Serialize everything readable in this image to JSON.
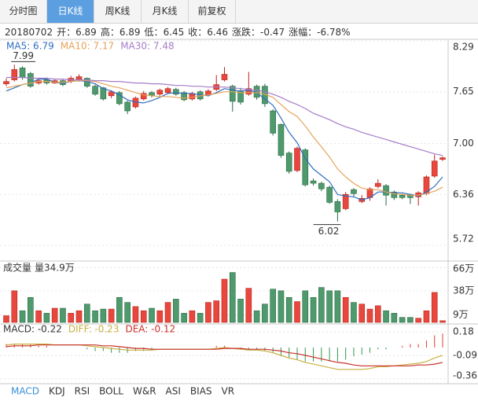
{
  "tabs": [
    "分时图",
    "日K线",
    "周K线",
    "月K线",
    "前复权"
  ],
  "active_tab": 1,
  "info": {
    "date": "20180702",
    "items": [
      {
        "label": "开：",
        "value": "6.89"
      },
      {
        "label": "高：",
        "value": "6.89"
      },
      {
        "label": "低：",
        "value": "6.45"
      },
      {
        "label": "收：",
        "value": "6.46"
      },
      {
        "label": "涨跌：",
        "value": "-0.47"
      },
      {
        "label": "涨幅：",
        "value": "-6.78%"
      }
    ]
  },
  "chart_data": [
    {
      "type": "candlestick",
      "up_color": "#e8473d",
      "up_edge": "#b8231c",
      "down_color": "#4e9a6c",
      "down_edge": "#2b6a44",
      "open": [
        7.75,
        7.8,
        7.95,
        7.88,
        7.76,
        7.8,
        7.76,
        7.79,
        7.78,
        7.8,
        7.82,
        7.72,
        7.7,
        7.6,
        7.64,
        7.52,
        7.46,
        7.56,
        7.64,
        7.62,
        7.64,
        7.68,
        7.64,
        7.56,
        7.65,
        7.61,
        7.68,
        7.8,
        7.72,
        7.66,
        7.62,
        7.72,
        7.72,
        7.41,
        7.24,
        6.88,
        6.66,
        6.92,
        6.53,
        6.5,
        6.45,
        6.27,
        6.18,
        6.42,
        6.27,
        6.32,
        6.46,
        6.47,
        6.39,
        6.35,
        6.36,
        6.33,
        6.37,
        6.59,
        6.8
      ],
      "close": [
        7.78,
        7.93,
        7.83,
        7.72,
        7.79,
        7.76,
        7.79,
        7.74,
        7.82,
        7.84,
        7.72,
        7.62,
        7.56,
        7.65,
        7.5,
        7.41,
        7.57,
        7.63,
        7.6,
        7.67,
        7.69,
        7.62,
        7.55,
        7.63,
        7.56,
        7.66,
        7.74,
        7.87,
        7.53,
        7.52,
        7.69,
        7.58,
        7.5,
        7.13,
        6.85,
        6.65,
        6.94,
        6.48,
        6.5,
        6.43,
        6.26,
        6.14,
        6.36,
        6.37,
        6.31,
        6.43,
        6.5,
        6.35,
        6.32,
        6.32,
        6.32,
        6.38,
        6.58,
        6.78,
        6.82
      ],
      "high": [
        7.82,
        7.99,
        7.97,
        7.9,
        7.82,
        7.83,
        7.81,
        7.81,
        7.85,
        7.87,
        7.83,
        7.74,
        7.71,
        7.67,
        7.66,
        7.54,
        7.59,
        7.66,
        7.66,
        7.69,
        7.71,
        7.7,
        7.66,
        7.65,
        7.67,
        7.68,
        7.86,
        7.96,
        7.74,
        7.7,
        7.9,
        7.74,
        7.75,
        7.43,
        7.25,
        6.9,
        6.96,
        6.94,
        6.56,
        6.52,
        6.47,
        6.3,
        6.39,
        6.44,
        6.35,
        6.45,
        6.55,
        6.49,
        6.41,
        6.37,
        6.37,
        6.4,
        6.6,
        6.86,
        6.84
      ],
      "low": [
        7.72,
        7.78,
        7.8,
        7.7,
        7.74,
        7.74,
        7.75,
        7.72,
        7.76,
        7.78,
        7.7,
        7.6,
        7.54,
        7.57,
        7.48,
        7.37,
        7.44,
        7.54,
        7.58,
        7.6,
        7.62,
        7.6,
        7.53,
        7.54,
        7.54,
        7.59,
        7.66,
        7.78,
        7.4,
        7.49,
        7.6,
        7.55,
        7.46,
        7.1,
        6.82,
        6.62,
        6.64,
        6.46,
        6.47,
        6.4,
        6.24,
        6.02,
        6.16,
        6.33,
        6.25,
        6.28,
        6.44,
        6.22,
        6.29,
        6.3,
        6.24,
        6.22,
        6.35,
        6.57,
        6.78
      ],
      "series": [
        {
          "name": "MA5: 6.79",
          "color": "#2f6fc0",
          "values": [
            7.66,
            7.7,
            7.74,
            7.76,
            7.81,
            7.81,
            7.77,
            7.76,
            7.78,
            7.79,
            7.78,
            7.75,
            7.69,
            7.66,
            7.61,
            7.55,
            7.52,
            7.51,
            7.54,
            7.58,
            7.63,
            7.64,
            7.63,
            7.63,
            7.61,
            7.6,
            7.64,
            7.69,
            7.67,
            7.66,
            7.67,
            7.64,
            7.56,
            7.48,
            7.32,
            7.14,
            7.01,
            6.81,
            6.68,
            6.6,
            6.52,
            6.36,
            6.34,
            6.33,
            6.29,
            6.32,
            6.39,
            6.39,
            6.38,
            6.38,
            6.36,
            6.34,
            6.39,
            6.46,
            6.58
          ]
        },
        {
          "name": "MA10: 7.17",
          "color": "#e6a35a",
          "values": [
            7.7,
            7.72,
            7.74,
            7.76,
            7.78,
            7.78,
            7.77,
            7.77,
            7.78,
            7.79,
            7.79,
            7.78,
            7.75,
            7.72,
            7.7,
            7.67,
            7.64,
            7.61,
            7.6,
            7.59,
            7.59,
            7.58,
            7.57,
            7.58,
            7.6,
            7.61,
            7.63,
            7.65,
            7.65,
            7.64,
            7.64,
            7.64,
            7.62,
            7.58,
            7.49,
            7.4,
            7.34,
            7.22,
            7.08,
            6.96,
            6.83,
            6.68,
            6.58,
            6.5,
            6.44,
            6.42,
            6.42,
            6.39,
            6.37,
            6.36,
            6.35,
            6.35,
            6.37,
            6.4,
            6.45
          ]
        },
        {
          "name": "MA30: 7.48",
          "color": "#a57cc8",
          "values": [
            7.83,
            7.83,
            7.83,
            7.82,
            7.82,
            7.82,
            7.81,
            7.81,
            7.8,
            7.8,
            7.8,
            7.79,
            7.79,
            7.78,
            7.78,
            7.77,
            7.76,
            7.76,
            7.75,
            7.75,
            7.74,
            7.73,
            7.73,
            7.72,
            7.72,
            7.71,
            7.71,
            7.71,
            7.7,
            7.69,
            7.68,
            7.67,
            7.65,
            7.62,
            7.58,
            7.53,
            7.49,
            7.44,
            7.38,
            7.34,
            7.3,
            7.25,
            7.21,
            7.18,
            7.14,
            7.11,
            7.08,
            7.05,
            7.02,
            6.99,
            6.96,
            6.93,
            6.9,
            6.87,
            6.85
          ]
        }
      ],
      "annotations": [
        {
          "value": 7.99,
          "label": "7.99"
        },
        {
          "value": 6.02,
          "label": "6.02"
        }
      ],
      "ylim": [
        5.72,
        8.29
      ],
      "yticks": [
        8.29,
        7.65,
        {
          "value": 7,
          "label": "7.00"
        },
        6.36,
        5.72
      ],
      "grid": true
    },
    {
      "type": "bar",
      "title": "成交量",
      "subtitle": "量34.9万",
      "values": [
        8,
        38,
        14,
        30,
        14,
        11,
        17,
        17,
        11,
        14,
        22,
        14,
        16,
        16,
        30,
        24,
        19,
        14,
        17,
        14,
        24,
        28,
        11,
        14,
        11,
        24,
        26,
        52,
        60,
        28,
        41,
        14,
        22,
        40,
        38,
        30,
        25,
        38,
        30,
        42,
        38,
        38,
        30,
        24,
        22,
        16,
        20,
        14,
        11,
        6,
        6,
        5,
        14,
        36,
        2
      ],
      "ylim": [
        0,
        70
      ],
      "yticks": [
        {
          "value": 66,
          "label": "66万"
        },
        {
          "value": 38,
          "label": "38万"
        },
        {
          "value": 9,
          "label": "9万"
        }
      ],
      "grid": true
    },
    {
      "type": "macd",
      "up_color": "#e03a30",
      "down_color": "#2f9a4a",
      "series": [
        {
          "name": "MACD: -0.22",
          "color": "#333333",
          "mark": "bar",
          "values": [
            0.04,
            0.04,
            0.04,
            0.04,
            0.02,
            0.02,
            0,
            0,
            0,
            0,
            -0.02,
            -0.04,
            -0.04,
            -0.06,
            -0.06,
            -0.06,
            -0.04,
            -0.04,
            -0.02,
            0,
            0,
            0,
            0,
            0,
            0,
            0,
            0.02,
            0.02,
            0,
            -0.02,
            -0.02,
            -0.02,
            -0.04,
            -0.06,
            -0.1,
            -0.12,
            -0.14,
            -0.16,
            -0.16,
            -0.16,
            -0.16,
            -0.16,
            -0.14,
            -0.1,
            -0.08,
            -0.06,
            -0.02,
            -0.02,
            0,
            0.02,
            0.04,
            0.04,
            0.08,
            0.14,
            0.16
          ]
        },
        {
          "name": "DIFF: -0.23",
          "color": "#c8b042",
          "mark": "line",
          "values": [
            0.03,
            0.04,
            0.04,
            0.04,
            0.04,
            0.04,
            0.03,
            0.03,
            0.03,
            0.03,
            0.02,
            0.01,
            0.0,
            -0.01,
            -0.02,
            -0.03,
            -0.03,
            -0.03,
            -0.03,
            -0.02,
            -0.02,
            -0.02,
            -0.02,
            -0.02,
            -0.02,
            -0.02,
            -0.01,
            0.0,
            -0.01,
            -0.02,
            -0.03,
            -0.03,
            -0.04,
            -0.06,
            -0.09,
            -0.12,
            -0.14,
            -0.17,
            -0.19,
            -0.21,
            -0.23,
            -0.25,
            -0.25,
            -0.25,
            -0.25,
            -0.24,
            -0.22,
            -0.22,
            -0.21,
            -0.2,
            -0.19,
            -0.18,
            -0.16,
            -0.12,
            -0.09
          ]
        },
        {
          "name": "DEA: -0.12",
          "color": "#c8302c",
          "mark": "line",
          "values": [
            0.01,
            0.02,
            0.02,
            0.02,
            0.03,
            0.03,
            0.03,
            0.03,
            0.03,
            0.03,
            0.03,
            0.03,
            0.02,
            0.02,
            0.01,
            0.0,
            -0.01,
            -0.01,
            -0.02,
            -0.02,
            -0.02,
            -0.02,
            -0.02,
            -0.02,
            -0.02,
            -0.02,
            -0.02,
            -0.01,
            -0.01,
            -0.01,
            -0.02,
            -0.02,
            -0.02,
            -0.03,
            -0.04,
            -0.06,
            -0.07,
            -0.09,
            -0.11,
            -0.13,
            -0.15,
            -0.17,
            -0.18,
            -0.2,
            -0.21,
            -0.21,
            -0.21,
            -0.21,
            -0.21,
            -0.21,
            -0.21,
            -0.2,
            -0.2,
            -0.19,
            -0.17
          ]
        }
      ],
      "ylim": [
        -0.36,
        0.18
      ],
      "yticks": [
        0.18,
        -0.09,
        -0.36
      ],
      "grid": true
    }
  ],
  "indicator_tabs": [
    "MACD",
    "KDJ",
    "RSI",
    "BOLL",
    "W&R",
    "ASI",
    "BIAS",
    "VR"
  ],
  "active_indicator": 0
}
